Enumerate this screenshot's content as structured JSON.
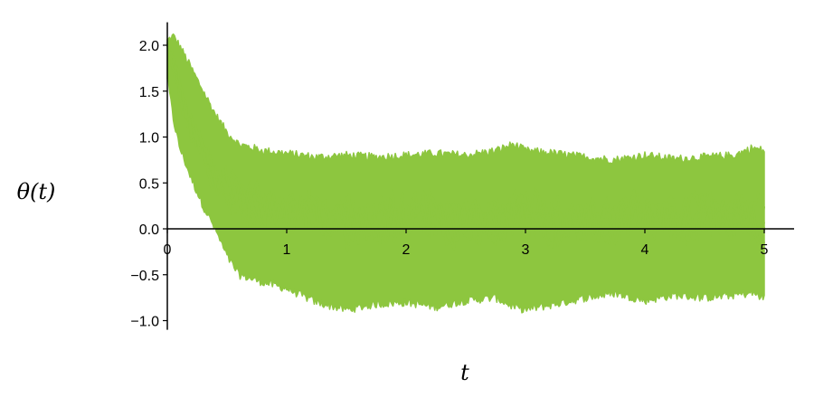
{
  "chart_data": {
    "type": "line",
    "title": "",
    "xlabel": "t",
    "ylabel": "θ(t)",
    "xlim": [
      0,
      5.25
    ],
    "ylim": [
      -1.1,
      2.25
    ],
    "x_ticks": [
      0,
      1,
      2,
      3,
      4,
      5
    ],
    "y_ticks": [
      -1.0,
      -0.5,
      0.0,
      0.5,
      1.0,
      1.5,
      2.0
    ],
    "x_tick_labels": [
      "0",
      "1",
      "2",
      "3",
      "4",
      "5"
    ],
    "y_tick_labels": [
      "−1.0",
      "−0.5",
      "0.0",
      "0.5",
      "1.0",
      "1.5",
      "2.0"
    ],
    "grid": false,
    "legend": "none",
    "color": "#8dc63f",
    "series": [
      {
        "x": [
          0,
          0.05,
          0.1,
          0.2,
          0.3,
          0.4,
          0.5,
          0.6,
          0.8,
          1.0,
          1.25,
          1.5,
          1.75,
          2.0,
          2.25,
          2.5,
          2.75,
          2.9,
          3.0,
          3.25,
          3.5,
          3.75,
          4.0,
          4.25,
          4.5,
          4.75,
          4.9,
          5.0
        ],
        "upper": [
          2.05,
          2.1,
          2.0,
          1.75,
          1.5,
          1.25,
          1.05,
          0.92,
          0.85,
          0.82,
          0.78,
          0.8,
          0.78,
          0.8,
          0.82,
          0.8,
          0.85,
          0.92,
          0.85,
          0.82,
          0.78,
          0.75,
          0.8,
          0.76,
          0.78,
          0.8,
          0.88,
          0.85
        ],
        "lower": [
          1.65,
          1.2,
          0.9,
          0.55,
          0.25,
          0.0,
          -0.3,
          -0.5,
          -0.58,
          -0.65,
          -0.8,
          -0.88,
          -0.82,
          -0.8,
          -0.85,
          -0.78,
          -0.75,
          -0.85,
          -0.88,
          -0.82,
          -0.75,
          -0.7,
          -0.78,
          -0.72,
          -0.75,
          -0.72,
          -0.7,
          -0.75
        ],
        "mean": [
          2.0,
          1.6,
          1.38,
          1.0,
          0.75,
          0.55,
          0.4,
          0.3,
          0.2,
          0.15,
          0.12,
          0.1,
          0.1,
          0.1,
          0.1,
          0.1,
          0.1,
          0.1,
          0.1,
          0.1,
          0.1,
          0.1,
          0.1,
          0.1,
          0.1,
          0.1,
          0.1,
          0.1
        ]
      }
    ]
  }
}
